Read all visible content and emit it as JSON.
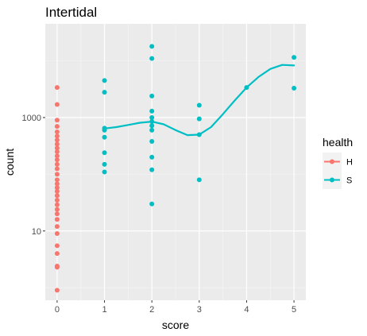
{
  "chart_data": {
    "type": "scatter",
    "title": "Intertidal",
    "xlabel": "score",
    "ylabel": "count",
    "x_ticks": [
      0,
      1,
      2,
      3,
      4,
      5
    ],
    "x_tick_labels": [
      "0",
      "1",
      "2",
      "3",
      "4",
      "5"
    ],
    "y_scale": "log10",
    "y_ticks": [
      10,
      1000
    ],
    "y_tick_labels": [
      "10",
      "1000"
    ],
    "xlim": [
      -0.25,
      5.25
    ],
    "ylim": [
      0.6,
      45000
    ],
    "grid": true,
    "legend": {
      "title": "health",
      "position": "right",
      "entries": [
        {
          "label": "H",
          "color": "#F8766D"
        },
        {
          "label": "S",
          "color": "#00BFC4"
        }
      ]
    },
    "series": [
      {
        "name": "H",
        "color": "#F8766D",
        "points": [
          {
            "x": 0,
            "y": 3400
          },
          {
            "x": 0,
            "y": 1700
          },
          {
            "x": 0,
            "y": 900
          },
          {
            "x": 0,
            "y": 700
          },
          {
            "x": 0,
            "y": 560
          },
          {
            "x": 0,
            "y": 470
          },
          {
            "x": 0,
            "y": 400
          },
          {
            "x": 0,
            "y": 340
          },
          {
            "x": 0,
            "y": 290
          },
          {
            "x": 0,
            "y": 250
          },
          {
            "x": 0,
            "y": 210
          },
          {
            "x": 0,
            "y": 180
          },
          {
            "x": 0,
            "y": 150
          },
          {
            "x": 0,
            "y": 125
          },
          {
            "x": 0,
            "y": 100
          },
          {
            "x": 0,
            "y": 80
          },
          {
            "x": 0,
            "y": 68
          },
          {
            "x": 0,
            "y": 58
          },
          {
            "x": 0,
            "y": 50
          },
          {
            "x": 0,
            "y": 42
          },
          {
            "x": 0,
            "y": 35
          },
          {
            "x": 0,
            "y": 29
          },
          {
            "x": 0,
            "y": 24
          },
          {
            "x": 0,
            "y": 20
          },
          {
            "x": 0,
            "y": 16
          },
          {
            "x": 0,
            "y": 12
          },
          {
            "x": 0,
            "y": 9
          },
          {
            "x": 0,
            "y": 5.5
          },
          {
            "x": 0,
            "y": 4
          },
          {
            "x": 0,
            "y": 2.4
          },
          {
            "x": 0,
            "y": 2.3
          },
          {
            "x": 0,
            "y": 0.9
          }
        ]
      },
      {
        "name": "S",
        "color": "#00BFC4",
        "points": [
          {
            "x": 1,
            "y": 4500
          },
          {
            "x": 1,
            "y": 2800
          },
          {
            "x": 1,
            "y": 650
          },
          {
            "x": 1,
            "y": 600
          },
          {
            "x": 1,
            "y": 450
          },
          {
            "x": 1,
            "y": 240
          },
          {
            "x": 1,
            "y": 150
          },
          {
            "x": 1,
            "y": 110
          },
          {
            "x": 2,
            "y": 18000
          },
          {
            "x": 2,
            "y": 11000
          },
          {
            "x": 2,
            "y": 2400
          },
          {
            "x": 2,
            "y": 1300
          },
          {
            "x": 2,
            "y": 1000
          },
          {
            "x": 2,
            "y": 850
          },
          {
            "x": 2,
            "y": 720
          },
          {
            "x": 2,
            "y": 600
          },
          {
            "x": 2,
            "y": 380
          },
          {
            "x": 2,
            "y": 200
          },
          {
            "x": 2,
            "y": 120
          },
          {
            "x": 2,
            "y": 30
          },
          {
            "x": 3,
            "y": 1650
          },
          {
            "x": 3,
            "y": 950
          },
          {
            "x": 3,
            "y": 500
          },
          {
            "x": 3,
            "y": 80
          },
          {
            "x": 4,
            "y": 3400
          },
          {
            "x": 5,
            "y": 11500
          },
          {
            "x": 5,
            "y": 3300
          }
        ],
        "smooth": [
          {
            "x": 1,
            "y": 640
          },
          {
            "x": 1.25,
            "y": 680
          },
          {
            "x": 1.5,
            "y": 740
          },
          {
            "x": 1.75,
            "y": 810
          },
          {
            "x": 2,
            "y": 850
          },
          {
            "x": 2.25,
            "y": 760
          },
          {
            "x": 2.5,
            "y": 600
          },
          {
            "x": 2.75,
            "y": 490
          },
          {
            "x": 3,
            "y": 500
          },
          {
            "x": 3.25,
            "y": 680
          },
          {
            "x": 3.5,
            "y": 1150
          },
          {
            "x": 3.75,
            "y": 2000
          },
          {
            "x": 4,
            "y": 3400
          },
          {
            "x": 4.25,
            "y": 5200
          },
          {
            "x": 4.5,
            "y": 7200
          },
          {
            "x": 4.75,
            "y": 8500
          },
          {
            "x": 5,
            "y": 8300
          }
        ]
      }
    ]
  }
}
